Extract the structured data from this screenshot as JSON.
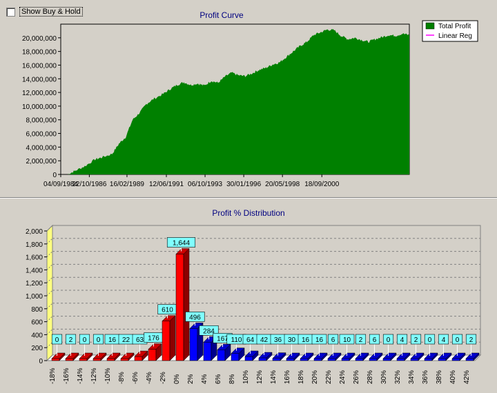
{
  "controls": {
    "show_buy_hold_label": "Show Buy & Hold",
    "show_buy_hold_checked": false
  },
  "colors": {
    "background": "#d4d0c8",
    "profit_fill": "#008000",
    "linear_reg": "#ff00ff",
    "title_color": "#000080",
    "negative_bar": "#ff0000",
    "positive_bar": "#0000ff",
    "label_box": "#80ffff",
    "wall": "#ffff80"
  },
  "chart_data": [
    {
      "type": "area",
      "title": "Profit Curve",
      "x_tick_labels": [
        "04/09/1984",
        "22/10/1986",
        "16/02/1989",
        "12/06/1991",
        "06/10/1993",
        "30/01/1996",
        "20/05/1998",
        "18/09/2000"
      ],
      "y_tick_labels": [
        "0",
        "2,000,000",
        "4,000,000",
        "6,000,000",
        "8,000,000",
        "10,000,000",
        "12,000,000",
        "14,000,000",
        "16,000,000",
        "18,000,000",
        "20,000,000"
      ],
      "ylim": [
        0,
        22000000
      ],
      "legend": [
        "Total Profit",
        "Linear Reg"
      ],
      "legend_placement": "top-right",
      "grid": false,
      "series": [
        {
          "name": "Total Profit",
          "x": [
            0,
            0.02,
            0.05,
            0.08,
            0.1,
            0.13,
            0.15,
            0.17,
            0.19,
            0.21,
            0.23,
            0.25,
            0.28,
            0.3,
            0.32,
            0.34,
            0.36,
            0.38,
            0.4,
            0.42,
            0.44,
            0.46,
            0.48,
            0.5,
            0.52,
            0.54,
            0.56,
            0.58,
            0.6,
            0.62,
            0.64,
            0.66,
            0.68,
            0.7,
            0.72,
            0.74,
            0.76,
            0.78,
            0.8,
            0.82,
            0.84,
            0.86,
            0.88,
            0.9,
            0.92,
            0.94,
            0.96,
            0.98,
            1
          ],
          "y": [
            0,
            500000,
            1200000,
            2200000,
            2500000,
            3000000,
            4500000,
            5500000,
            8000000,
            9000000,
            10300000,
            11000000,
            11800000,
            12500000,
            13100000,
            13500000,
            13100000,
            13300000,
            13000000,
            13700000,
            13400000,
            14300000,
            14900000,
            14500000,
            14400000,
            14800000,
            15300000,
            15600000,
            16100000,
            16400000,
            17200000,
            18000000,
            18800000,
            19400000,
            20400000,
            20800000,
            21200000,
            21100000,
            20300000,
            19800000,
            20000000,
            19700000,
            19400000,
            19800000,
            20100000,
            20400000,
            20300000,
            20600000,
            20400000
          ]
        },
        {
          "name": "Linear Reg",
          "x": [],
          "y": []
        }
      ]
    },
    {
      "type": "bar",
      "title": "Profit % Distribution",
      "categories": [
        "-18%",
        "-16%",
        "-14%",
        "-12%",
        "-10%",
        "-8%",
        "-6%",
        "-4%",
        "-2%",
        "0%",
        "2%",
        "4%",
        "6%",
        "8%",
        "10%",
        "12%",
        "14%",
        "16%",
        "18%",
        "20%",
        "22%",
        "24%",
        "26%",
        "28%",
        "30%",
        "32%",
        "34%",
        "36%",
        "38%",
        "40%",
        "42%"
      ],
      "values": [
        0,
        2,
        0,
        0,
        16,
        22,
        63,
        176,
        610,
        1644,
        496,
        284,
        167,
        110,
        64,
        42,
        36,
        30,
        16,
        16,
        6,
        10,
        2,
        6,
        0,
        4,
        2,
        0,
        4,
        0,
        2
      ],
      "value_labels": [
        "0",
        "2",
        "0",
        "0",
        "16",
        "22",
        "63",
        "176",
        "610",
        "1,644",
        "496",
        "284",
        "167",
        "110",
        "64",
        "42",
        "36",
        "30",
        "16",
        "16",
        "6",
        "10",
        "2",
        "6",
        "0",
        "4",
        "2",
        "0",
        "4",
        "0",
        "2"
      ],
      "y_tick_labels": [
        "0",
        "200",
        "400",
        "600",
        "800",
        "1,000",
        "1,200",
        "1,400",
        "1,600",
        "1,800",
        "2,000"
      ],
      "ylim": [
        0,
        2000
      ],
      "grid": true,
      "negative_count": 10
    }
  ]
}
